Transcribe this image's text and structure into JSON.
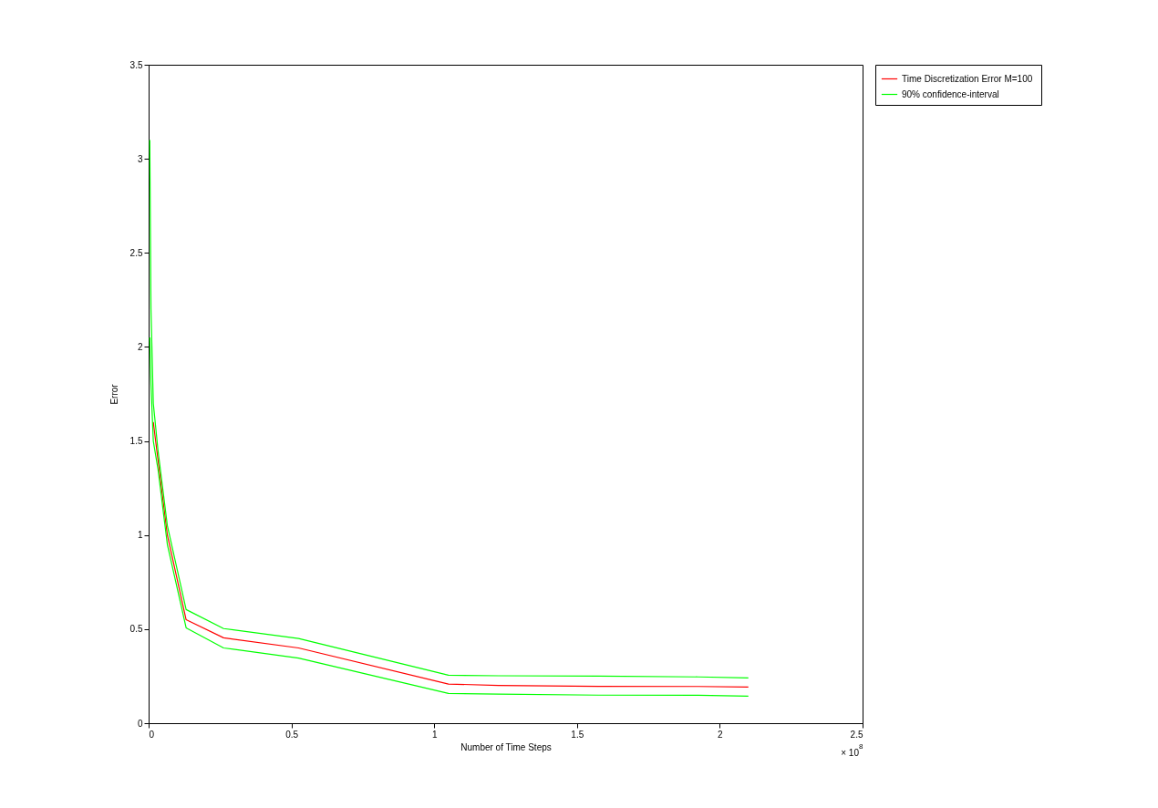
{
  "chart_data": {
    "type": "line",
    "xlabel": "Number of Time Steps",
    "ylabel": "Error",
    "x": [
      0.0041,
      0.0082,
      0.0164,
      0.0328,
      0.0656,
      0.1313,
      0.2625,
      0.525,
      1.05,
      1.225,
      1.575,
      1.925,
      2.1
    ],
    "series": [
      {
        "name": "Time Discretization Error  M=100",
        "color": "#ff0000",
        "values": [
          null,
          null,
          1.6,
          1.4,
          1.0,
          0.55,
          0.454,
          0.4,
          0.208,
          0.201,
          0.196,
          0.195,
          0.192
        ]
      },
      {
        "name": "90% confidence-interval",
        "color": "#00ff00",
        "values": [
          3.1,
          2.2,
          1.7,
          1.45,
          1.05,
          0.604,
          0.503,
          0.45,
          0.255,
          0.252,
          0.25,
          0.246,
          0.241
        ]
      },
      {
        "color": "#00ff00",
        "values": [
          2.05,
          1.8,
          1.5,
          1.35,
          0.95,
          0.507,
          0.4,
          0.346,
          0.158,
          0.155,
          0.149,
          0.148,
          0.144
        ]
      }
    ],
    "xlim": [
      0,
      2.5
    ],
    "xticks": [
      0,
      0.5,
      1,
      1.5,
      2,
      2.5
    ],
    "ylim": [
      0,
      3.5
    ],
    "yticks": [
      0,
      0.5,
      1,
      1.5,
      2,
      2.5,
      3,
      3.5
    ],
    "annotations": [
      "× 10$^{8}$"
    ],
    "grid": false,
    "legend": "top right",
    "marker": "none",
    "line_style": "solid"
  }
}
